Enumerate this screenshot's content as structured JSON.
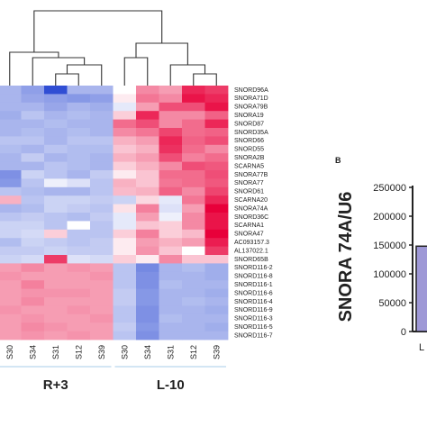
{
  "chart_data": [
    {
      "type": "heatmap",
      "columns": [
        "S30",
        "S34",
        "S31",
        "S12",
        "S39",
        "S30",
        "S34",
        "S31",
        "S12",
        "S39"
      ],
      "column_groups": [
        {
          "name": "R+3",
          "columns": [
            0,
            1,
            2,
            3,
            4
          ]
        },
        {
          "name": "L-10",
          "columns": [
            5,
            6,
            7,
            8,
            9
          ]
        }
      ],
      "rows": [
        "SNORD96A",
        "SNORA71D",
        "SNORA79B",
        "SNORA19",
        "SNORD87",
        "SNORD35A",
        "SNORD66",
        "SNORD55",
        "SNORA2B",
        "SCARNA5",
        "SNORA77B",
        "SNORA77",
        "SNORD61",
        "SCARNA20",
        "SNORA74A",
        "SNORD36C",
        "SCARNA1",
        "SNORA47",
        "AC093157.3",
        "AL137022.1",
        "SNORD65B",
        "SNORD116-2",
        "SNORD116-8",
        "SNORD116-1",
        "SNORD116-6",
        "SNORD116-4",
        "SNORD116-9",
        "SNORD116-3",
        "SNORD116-5",
        "SNORD116-7"
      ],
      "values": [
        [
          -1,
          -1.3,
          -2.4,
          -1,
          -1,
          0,
          1.2,
          1,
          2.2,
          2
        ],
        [
          -1,
          -1.2,
          -1.3,
          -1.4,
          -1.3,
          0.2,
          1.4,
          1.2,
          2.4,
          2.2
        ],
        [
          -1,
          -1,
          -1.2,
          -1,
          -1.1,
          -0.3,
          1,
          1.8,
          1.8,
          2.4
        ],
        [
          -1.1,
          -0.8,
          -1,
          -0.9,
          -1,
          0.5,
          2.2,
          1.2,
          1.2,
          1.6
        ],
        [
          -1,
          -1,
          -0.9,
          -1,
          -1,
          1.5,
          1.8,
          1.2,
          1.5,
          2.2
        ],
        [
          -1,
          -0.9,
          -1,
          -0.9,
          -1,
          1.2,
          1.4,
          1.9,
          1.5,
          1.6
        ],
        [
          -0.8,
          -0.8,
          -1,
          -0.8,
          -0.8,
          0.8,
          1,
          2.2,
          1.6,
          1.8
        ],
        [
          -0.9,
          -1,
          -0.8,
          -0.9,
          -0.9,
          0.6,
          0.8,
          2.1,
          1.5,
          1.2
        ],
        [
          -1,
          -0.7,
          -1,
          -0.9,
          -1,
          0.8,
          1,
          1.8,
          1.3,
          1.5
        ],
        [
          -1,
          -1,
          -0.8,
          -0.9,
          -1,
          0.5,
          0.8,
          1.2,
          1.8,
          1.7
        ],
        [
          -1.5,
          -0.6,
          -0.8,
          -1,
          -0.7,
          0.2,
          0.6,
          1.5,
          1.5,
          1.8
        ],
        [
          -1.4,
          -0.8,
          -0.2,
          -0.4,
          -0.8,
          0.8,
          0.6,
          1.4,
          1.5,
          1.7
        ],
        [
          -0.8,
          -0.9,
          -1,
          -1,
          -0.8,
          0.7,
          0.8,
          1.6,
          1.2,
          1.9
        ],
        [
          0.8,
          -0.8,
          -0.6,
          -0.6,
          -0.7,
          -0.6,
          0.4,
          -0.3,
          1.4,
          2.2
        ],
        [
          -1,
          -0.9,
          -0.6,
          -0.7,
          -0.8,
          0.3,
          1.3,
          -0.4,
          1,
          2.6
        ],
        [
          -0.8,
          -0.7,
          -0.8,
          -0.9,
          -0.7,
          -0.3,
          1,
          -0.2,
          1.2,
          2.4
        ],
        [
          -0.6,
          -0.6,
          -0.8,
          0,
          -0.8,
          -0.3,
          0.6,
          0.5,
          1.2,
          2.4
        ],
        [
          -0.6,
          -0.5,
          0.5,
          -0.8,
          -0.8,
          0.5,
          1.3,
          0.5,
          0.7,
          2.6
        ],
        [
          -0.9,
          -0.6,
          -0.7,
          -0.8,
          -0.7,
          0.2,
          1,
          0.8,
          1,
          2.3
        ],
        [
          -0.7,
          -0.7,
          -0.6,
          -0.7,
          -0.7,
          0.2,
          1.1,
          0.6,
          0,
          2
        ],
        [
          -0.6,
          -0.5,
          2,
          -0.4,
          -0.5,
          0.5,
          0.2,
          1.2,
          0.6,
          0.6
        ],
        [
          1,
          1.2,
          1,
          1.1,
          1,
          -0.8,
          -1.6,
          -1,
          -0.9,
          -1.1
        ],
        [
          1.1,
          1,
          1,
          1,
          1.1,
          -0.8,
          -1.5,
          -1,
          -1,
          -1.1
        ],
        [
          1,
          1.3,
          1,
          1,
          1,
          -0.8,
          -1.5,
          -0.9,
          -1,
          -1
        ],
        [
          1,
          1.1,
          1.1,
          1.1,
          1,
          -0.7,
          -1.4,
          -1,
          -1,
          -1.1
        ],
        [
          1,
          1.2,
          1,
          1,
          1,
          -0.7,
          -1.4,
          -1,
          -0.9,
          -1
        ],
        [
          1.1,
          1,
          1,
          1.1,
          1,
          -0.8,
          -1.5,
          -1,
          -1,
          -1.1
        ],
        [
          1,
          1.1,
          1,
          1,
          1.1,
          -0.8,
          -1.5,
          -0.9,
          -1,
          -1
        ],
        [
          1,
          1.2,
          1.1,
          1,
          1,
          -0.7,
          -1.4,
          -1,
          -1,
          -1.1
        ],
        [
          1,
          1.1,
          1,
          1.1,
          1,
          -0.8,
          -1.5,
          -1,
          -1,
          -1
        ]
      ],
      "colormap": {
        "low": "#1f3fd0",
        "mid": "#ffffff",
        "high": "#e8003a"
      }
    },
    {
      "type": "bar",
      "panel_label": "B",
      "ylabel": "SNORA 74A/U6",
      "yticks": [
        0,
        50000,
        100000,
        150000,
        200000,
        250000
      ],
      "ylim": [
        0,
        250000
      ],
      "categories": [
        "L"
      ],
      "values": [
        148000
      ],
      "bar_color": "#9e98d6"
    }
  ]
}
